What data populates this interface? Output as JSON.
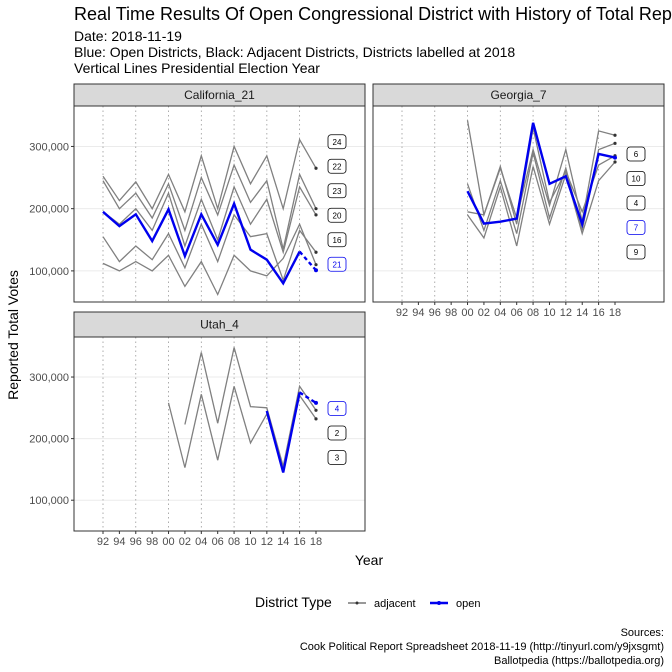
{
  "chart_data": {
    "type": "line",
    "title": "Real Time Results Of Open Congressional District with History of Total Reported Votes",
    "subtitles": [
      "Date: 2018-11-19",
      "Blue: Open Districts, Black: Adjacent Districts, Districts labelled at 2018",
      "Vertical Lines Presidential Election Year"
    ],
    "xlabel": "Year",
    "ylabel": "Reported Total Votes",
    "x_ticks": [
      "92",
      "94",
      "96",
      "98",
      "00",
      "02",
      "04",
      "06",
      "08",
      "10",
      "12",
      "14",
      "16",
      "18"
    ],
    "x_years": [
      1992,
      1994,
      1996,
      1998,
      2000,
      2002,
      2004,
      2006,
      2008,
      2010,
      2012,
      2014,
      2016,
      2018
    ],
    "presidential_years": [
      1992,
      1996,
      2000,
      2004,
      2008,
      2012,
      2016
    ],
    "y_ticks": [
      100000,
      200000,
      300000
    ],
    "y_tick_labels": [
      "100,000",
      "200,000",
      "300,000"
    ],
    "ylim": [
      50000,
      365000
    ],
    "colors": {
      "open": "#0000ee",
      "adjacent": "#808080",
      "adjacent_legend": "#333333",
      "panel_border": "#333333",
      "strip_fill": "#d9d9d9",
      "grid": "#ebebeb"
    },
    "legend": {
      "title": "District Type",
      "entries": [
        {
          "label": "adjacent",
          "color": "#333333"
        },
        {
          "label": "open",
          "color": "#0000ee"
        }
      ],
      "placement": "bottom"
    },
    "sources": [
      "Sources:",
      "Cook Political Report Spreadsheet 2018-11-19 (http://tinyurl.com/y9jxsgmt)",
      "Ballotpedia (https://ballotpedia.org)"
    ],
    "panels": [
      {
        "name": "California_21",
        "open": {
          "label": "21",
          "years": [
            1992,
            1994,
            1996,
            1998,
            2000,
            2002,
            2004,
            2006,
            2008,
            2010,
            2012,
            2014,
            2016
          ],
          "values": [
            195000,
            172000,
            191000,
            148000,
            199000,
            124000,
            191000,
            142000,
            208000,
            134000,
            118000,
            80000,
            131000
          ],
          "final": 101000
        },
        "adjacent": [
          {
            "label": "24",
            "years": [
              1992,
              1994,
              1996,
              1998,
              2000,
              2002,
              2004,
              2006,
              2008,
              2010,
              2012,
              2014,
              2016,
              2018
            ],
            "values": [
              252000,
              213000,
              243000,
              200000,
              255000,
              195000,
              285000,
              200000,
              300000,
              240000,
              285000,
              200000,
              311000,
              265000
            ]
          },
          {
            "label": "22",
            "years": [
              1992,
              1994,
              1996,
              1998,
              2000,
              2002,
              2004,
              2006,
              2008,
              2010,
              2012,
              2014,
              2016,
              2018
            ],
            "values": [
              245000,
              200000,
              225000,
              185000,
              240000,
              165000,
              250000,
              190000,
              270000,
              210000,
              245000,
              135000,
              255000,
              200000
            ]
          },
          {
            "label": "23",
            "years": [
              1992,
              1994,
              1996,
              1998,
              2000,
              2002,
              2004,
              2006,
              2008,
              2010,
              2012,
              2014,
              2016,
              2018
            ],
            "values": [
              195000,
              175000,
              200000,
              165000,
              225000,
              140000,
              215000,
              150000,
              235000,
              175000,
              215000,
              130000,
              235000,
              190000
            ]
          },
          {
            "label": "20",
            "years": [
              1992,
              1994,
              1996,
              1998,
              2000,
              2002,
              2004,
              2006,
              2008,
              2010,
              2012,
              2014,
              2016,
              2018
            ],
            "values": [
              155000,
              115000,
              140000,
              118000,
              160000,
              105000,
              175000,
              115000,
              190000,
              155000,
              160000,
              85000,
              165000,
              130000
            ]
          },
          {
            "label": "16",
            "years": [
              1992,
              1994,
              1996,
              1998,
              2000,
              2002,
              2004,
              2006,
              2008,
              2010,
              2012,
              2014,
              2016,
              2018
            ],
            "values": [
              112000,
              100000,
              115000,
              100000,
              125000,
              75000,
              115000,
              62000,
              125000,
              100000,
              92000,
              120000,
              175000,
              110000
            ]
          }
        ]
      },
      {
        "name": "Georgia_7",
        "open": {
          "label": "7",
          "years": [
            2000,
            2002,
            2004,
            2006,
            2008,
            2010,
            2012,
            2014,
            2016,
            2018
          ],
          "values": [
            228000,
            176000,
            179000,
            184000,
            338000,
            240000,
            252000,
            175000,
            288000,
            282000
          ]
        },
        "adjacent": [
          {
            "label": "6",
            "years": [
              2000,
              2002,
              2004,
              2006,
              2008,
              2010,
              2012,
              2014,
              2016,
              2018
            ],
            "values": [
              342000,
              190000,
              265000,
              185000,
              295000,
              205000,
              295000,
              180000,
              325000,
              318000
            ]
          },
          {
            "label": "10",
            "years": [
              2000,
              2002,
              2004,
              2006,
              2008,
              2010,
              2012,
              2014,
              2016,
              2018
            ],
            "values": [
              240000,
              165000,
              245000,
              160000,
              290000,
              185000,
              265000,
              165000,
              295000,
              305000
            ]
          },
          {
            "label": "4",
            "years": [
              2000,
              2002,
              2004,
              2006,
              2008,
              2010,
              2012,
              2014,
              2016,
              2018
            ],
            "values": [
              195000,
              190000,
              268000,
              175000,
              330000,
              210000,
              260000,
              195000,
              270000,
              285000
            ]
          },
          {
            "label": "9",
            "years": [
              2000,
              2002,
              2004,
              2006,
              2008,
              2010,
              2012,
              2014,
              2016,
              2018
            ],
            "values": [
              190000,
              153000,
              235000,
              140000,
              268000,
              175000,
              255000,
              160000,
              245000,
              275000
            ]
          }
        ]
      },
      {
        "name": "Utah_4",
        "open": {
          "label": "4",
          "years": [
            2012,
            2014,
            2016
          ],
          "values": [
            245000,
            145000,
            275000
          ],
          "final": 258000
        },
        "adjacent": [
          {
            "label": "2",
            "years": [
              2002,
              2004,
              2006,
              2008,
              2010,
              2012,
              2014,
              2016,
              2018
            ],
            "values": [
              223000,
              340000,
              225000,
              348000,
              252000,
              250000,
              155000,
              285000,
              246000
            ]
          },
          {
            "label": "3",
            "years": [
              2000,
              2002,
              2004,
              2006,
              2008,
              2010,
              2012,
              2014,
              2016,
              2018
            ],
            "values": [
              258000,
              153000,
              272000,
              165000,
              285000,
              193000,
              240000,
              150000,
              270000,
              232000
            ]
          }
        ]
      }
    ]
  }
}
